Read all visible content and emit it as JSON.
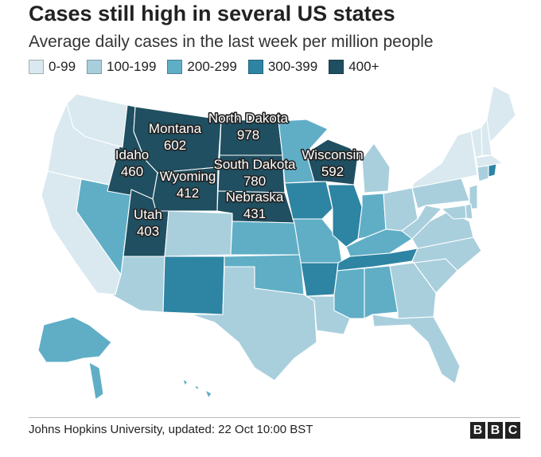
{
  "title": "Cases still high in several US states",
  "subtitle": "Average daily cases in the last week per million people",
  "legend": [
    {
      "label": "0-99",
      "color": "#d9e9ef"
    },
    {
      "label": "100-199",
      "color": "#a9cfdd"
    },
    {
      "label": "200-299",
      "color": "#5faec6"
    },
    {
      "label": "300-399",
      "color": "#2e84a3"
    },
    {
      "label": "400+",
      "color": "#1f4f60"
    }
  ],
  "states": [
    {
      "id": "WA",
      "band": 0
    },
    {
      "id": "OR",
      "band": 0
    },
    {
      "id": "CA",
      "band": 0
    },
    {
      "id": "NV",
      "band": 2
    },
    {
      "id": "AZ",
      "band": 1
    },
    {
      "id": "ID",
      "band": 4,
      "name": "Idaho",
      "value": "460"
    },
    {
      "id": "MT",
      "band": 4,
      "name": "Montana",
      "value": "602"
    },
    {
      "id": "WY",
      "band": 4,
      "name": "Wyoming",
      "value": "412"
    },
    {
      "id": "UT",
      "band": 4,
      "name": "Utah",
      "value": "403"
    },
    {
      "id": "CO",
      "band": 1
    },
    {
      "id": "NM",
      "band": 3
    },
    {
      "id": "ND",
      "band": 4,
      "name": "North Dakota",
      "value": "978"
    },
    {
      "id": "SD",
      "band": 4,
      "name": "South Dakota",
      "value": "780"
    },
    {
      "id": "NE",
      "band": 4,
      "name": "Nebraska",
      "value": "431"
    },
    {
      "id": "KS",
      "band": 2
    },
    {
      "id": "OK",
      "band": 2
    },
    {
      "id": "TX",
      "band": 1
    },
    {
      "id": "MN",
      "band": 2
    },
    {
      "id": "IA",
      "band": 3
    },
    {
      "id": "MO",
      "band": 2
    },
    {
      "id": "AR",
      "band": 3
    },
    {
      "id": "LA",
      "band": 1
    },
    {
      "id": "WI",
      "band": 4,
      "name": "Wisconsin",
      "value": "592"
    },
    {
      "id": "IL",
      "band": 3
    },
    {
      "id": "MI",
      "band": 1
    },
    {
      "id": "IN",
      "band": 2
    },
    {
      "id": "OH",
      "band": 1
    },
    {
      "id": "KY",
      "band": 2
    },
    {
      "id": "TN",
      "band": 3
    },
    {
      "id": "MS",
      "band": 2
    },
    {
      "id": "AL",
      "band": 2
    },
    {
      "id": "GA",
      "band": 1
    },
    {
      "id": "FL",
      "band": 1
    },
    {
      "id": "SC",
      "band": 1
    },
    {
      "id": "NC",
      "band": 1
    },
    {
      "id": "VA",
      "band": 1
    },
    {
      "id": "WV",
      "band": 1
    },
    {
      "id": "PA",
      "band": 1
    },
    {
      "id": "NY",
      "band": 0
    },
    {
      "id": "VT",
      "band": 0
    },
    {
      "id": "NH",
      "band": 0
    },
    {
      "id": "ME",
      "band": 0
    },
    {
      "id": "MA",
      "band": 0
    },
    {
      "id": "CT",
      "band": 1
    },
    {
      "id": "RI",
      "band": 3
    },
    {
      "id": "NJ",
      "band": 1
    },
    {
      "id": "DE",
      "band": 1
    },
    {
      "id": "MD",
      "band": 1
    },
    {
      "id": "AK",
      "band": 2
    },
    {
      "id": "HI",
      "band": 2
    }
  ],
  "source": "Johns Hopkins University, updated: 22 Oct 10:00 BST",
  "logo": [
    "B",
    "B",
    "C"
  ]
}
